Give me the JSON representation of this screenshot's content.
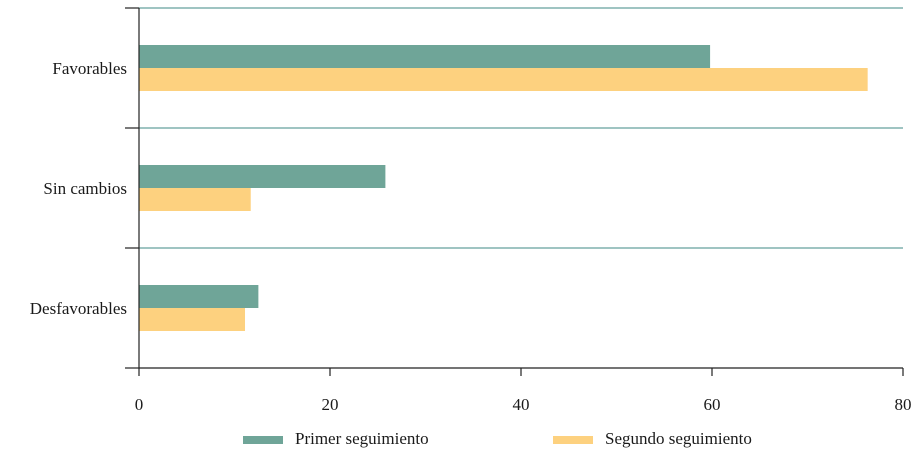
{
  "chart_data": {
    "type": "bar",
    "orientation": "horizontal",
    "categories": [
      "Favorables",
      "Sin cambios",
      "Desfavorables"
    ],
    "series": [
      {
        "name": "Primer seguimiento",
        "values": [
          59.8,
          25.8,
          12.5
        ],
        "color": "#6fa598"
      },
      {
        "name": "Segundo seguimiento",
        "values": [
          76.3,
          11.7,
          11.1
        ],
        "color": "#fdd17f"
      }
    ],
    "xlim": [
      0,
      80
    ],
    "xticks": [
      "0",
      "20",
      "40",
      "60",
      "80"
    ],
    "grid": "horizontal separators between categories",
    "legend_position": "bottom",
    "axis_color": "#222222",
    "separator_color": "#3f8a84"
  }
}
